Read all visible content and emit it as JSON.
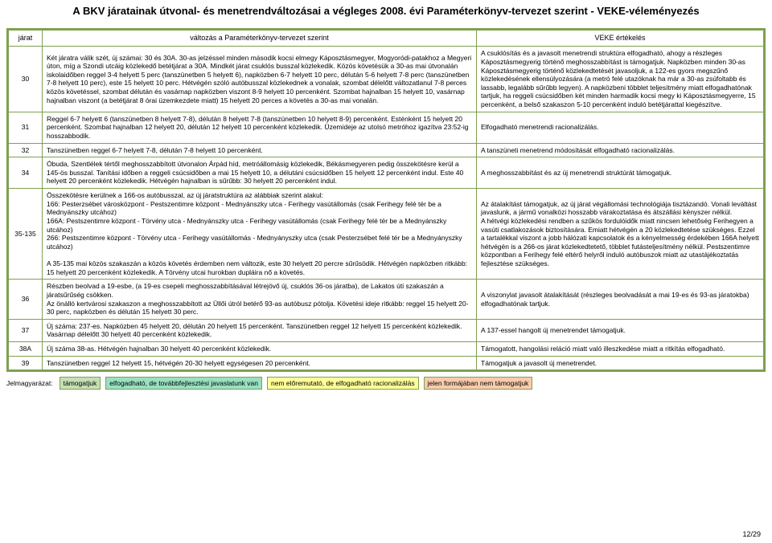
{
  "title": "A BKV járatainak útvonal- és menetrendváltozásai a végleges 2008. évi Paraméterkönyv-tervezet szerint - VEKE-véleményezés",
  "headers": {
    "jarat": "járat",
    "valtozas": "változás a Paraméterkönyv-tervezet szerint",
    "veke": "VEKE értékelés"
  },
  "rows": [
    {
      "num": "30",
      "valt": "Két járatra válik szét, új számai: 30 és 30A. 30-as jelzéssel minden második kocsi elmegy Káposztásmegyer, Mogyoródi-patakhoz a Megyeri úton, míg a Szondi utcáig közlekedő betétjárat a 30A. Mindkét járat csuklós busszal közlekedik. Közös követésük a 30-as mai útvonalán iskolaidőben reggel 3-4 helyett 5 perc (tanszünetben 5 helyett 6), napközben 6-7 helyett 10 perc, délután 5-6 helyett 7-8 perc (tanszünetben 7-8 helyett 10 perc), este 15 helyett 10 perc. Hétvégén szóló autóbusszal közlekednek a vonalak, szombat délelőtt változatlanul 7-8 perces közös követéssel, szombat délután és vasárnap napközben viszont 8-9 helyett 10 percenként. Szombat hajnalban 15 helyett 10, vasárnap hajnalban viszont (a betétjárat 8 órai üzemkezdete miatt) 15 helyett 20 perces a követés a 30-as mai vonalán.",
      "veke": "A csuklósítás és a javasolt menetrendi struktúra elfogadható, ahogy a részleges Káposztásmegyerig történő meghosszabbítást is támogatjuk. Napközben minden 30-as Káposztásmegyerig történő közlekedtetését javasoljuk, a 122-es gyors megszűnő közlekedésének ellensúlyozására (a metró felé utazóknak ha már a 30-as zsúfoltabb és lassabb, legalább sűrűbb legyen). A napközbeni többlet teljesítmény miatt elfogadhatónak tartjuk, ha reggeli csúcsidőben két minden harmadik kocsi megy ki Káposztásmegyerre, 15 percenként, a belső szakaszon 5-10 percenként induló betétjárattal kiegészítve."
    },
    {
      "num": "31",
      "valt": "Reggel 6-7 helyett 6 (tanszünetben 8 helyett 7-8), délután 8 helyett 7-8 (tanszünetben 10 helyett 8-9) percenként. Esténként 15 helyett 20 percenként. Szombat hajnalban 12 helyett 20, délután 12 helyett 10 percenként közlekedik. Üzemideje az utolsó metróhoz igazítva 23:52-ig hosszabbodik.",
      "veke": "Elfogadható menetrendi racionalizálás."
    },
    {
      "num": "32",
      "valt": "Tanszünetben reggel 6-7 helyett 7-8, délután 7-8 helyett 10 percenként.",
      "veke": "A tanszüneti menetrend módosítását elfogadható racionalizálás."
    },
    {
      "num": "34",
      "valt": "Óbuda, Szentlélek tértől meghosszabbított útvonalon Árpád híd, metróállomásig közlekedik, Békásmegyeren pedig összekötésre kerül a 145-ös busszal. Tanítási időben a reggeli csúcsidőben a mai 15 helyett 10, a délutáni csúcsidőben 15 helyett 12 percenként indul. Este 40 helyett 20 percenként közlekedik. Hétvégén hajnalban is sűrűbb: 30 helyett 20 percenként indul.",
      "veke": "A meghosszabbítást és az új menetrendi struktúrát támogatjuk."
    },
    {
      "num": "35-135",
      "valt": "Összekötésre kerülnek a 166-os autóbusszal, az új járatstruktúra az alábbiak szerint alakul:\n166: Pesterzsébet városközpont - Pestszentimre központ - Mednyánszky utca - Ferihegy vasútállomás (csak Ferihegy felé tér be a Mednyánszky utcához)\n166A: Pestszentimre központ - Törvény utca - Mednyánszky utca - Ferihegy vasútállomás (csak Ferihegy felé tér be a Mednyánszky utcához)\n266: Pestszentimre központ - Törvény utca - Ferihegy vasútállomás - Mednyányszky utca (csak Pesterzsébet felé tér be a Mednyányszky utcához)\n\nA 35-135 mai közös szakaszán a közös követés érdemben nem változik, este 30 helyett 20 percre sűrűsödik. Hétvégén napközben ritkább: 15 helyett 20 percenként közlekedik. A Törvény utcai hurokban dupláira nő a követés.",
      "veke": "Az átalakítást támogatjuk, az új járat végállomási technológiája tisztázandó. Vonali leváltást javaslunk, a jármű vonalközi hosszabb várakoztatása és átszállási kényszer nélkül.\nA hétvégi közlekedési rendben a szűkös fordulóidők miatt nincsen lehetőség Ferihegyen a vasúti csatlakozások biztosítására. Emiatt hétvégén a 20 közlekedtetése szükséges. Ezzel a tartalékkal viszont a jobb hálózati kapcsolatok és a kényelmesség érdekében 166A helyett hétvégén is a 266-os járat közlekedtetető, többlet futásteljesítmény nélkül. Pestszentimre központban a Ferihegy felé eltérő helyről induló autóbuszok miatt az utastájékoztatás fejlesztése szükséges."
    },
    {
      "num": "36",
      "valt": "Részben beolvad a 19-esbe, (a 19-es csepeli meghosszabbításával létrejövő új, csuklós 36-os járatba), de Lakatos úti szakaszán a járatsűrűség csökken.\nAz önálló kertvárosi szakaszon a meghosszabbított az Üllői útról betérő 93-as autóbusz pótolja. Követési ideje ritkább: reggel 15 helyett 20-30 perc, napközben és délután 15 helyett 30 perc.",
      "veke": "A viszonylat javasolt átalakítását (részleges beolvadását a mai 19-es és 93-as járatokba) elfogadhatónak tartjuk."
    },
    {
      "num": "37",
      "valt": "Új száma: 237-es. Napközben 45 helyett 20, délután 20 helyett 15 percenként. Tanszünetben reggel 12 helyett 15 percenként közlekedik. Vasárnap délelőtt 30 helyett 40 percenként közlekedik.",
      "veke": "A 137-essel hangolt új menetrendet támogatjuk."
    },
    {
      "num": "38A",
      "valt": "Új száma 38-as. Hétvégén hajnalban 30 helyett 40 percenként közlekedik.",
      "veke": "Támogatott, hangolási reláció miatt való illeszkedése miatt a ritkítás elfogadható."
    },
    {
      "num": "39",
      "valt": "Tanszünetben reggel 12 helyett 15, hétvégén 20-30 helyett egységesen 20 percenként.",
      "veke": "Támogatjuk a javasolt új menetrendet."
    }
  ],
  "legend": {
    "label": "Jelmagyarázat:",
    "b1": "támogatjuk",
    "b2": "elfogadható, de továbbfejlesztési javaslatunk van",
    "b3": "nem előremutató, de elfogadható racionalizálás",
    "b4": "jelen formájában nem támogatjuk"
  },
  "pagenum": "12/29",
  "colors": {
    "border": "#7fa050",
    "lg1": "#c5e0b4",
    "lg2": "#99e0c2",
    "lg3": "#ffff99",
    "lg4": "#f8cbad"
  }
}
